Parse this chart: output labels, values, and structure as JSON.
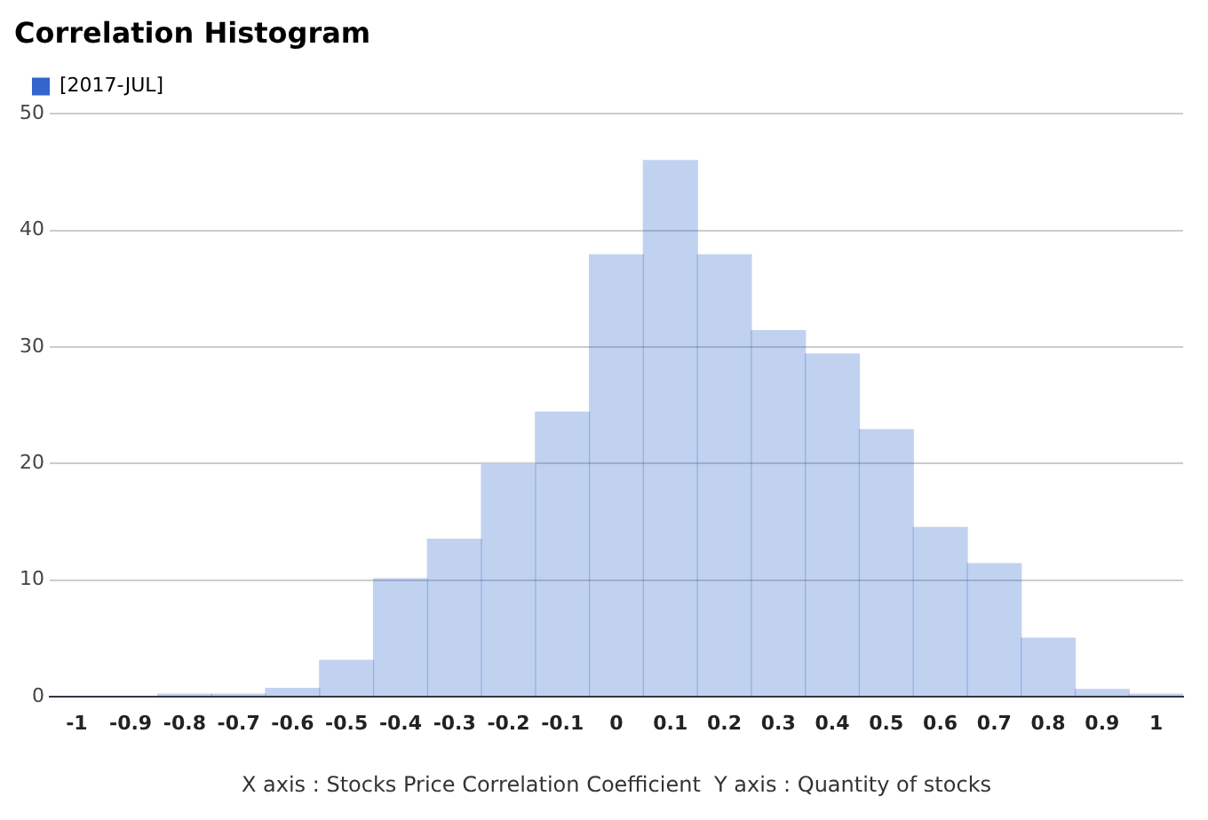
{
  "chart_data": {
    "type": "histogram",
    "title": "Correlation Histogram",
    "xlabel": "X axis : Stocks Price Correlation Coefficient  Y axis : Quantity of stocks",
    "bins": [
      -1.05,
      -0.95,
      -0.85,
      -0.75,
      -0.65,
      -0.55,
      -0.45,
      -0.35,
      -0.25,
      -0.15,
      -0.05,
      0.05,
      0.15,
      0.25,
      0.35,
      0.45,
      0.55,
      0.65,
      0.75,
      0.85,
      0.95,
      1.05
    ],
    "series": [
      {
        "name": "[2017-JUL]",
        "color": "#3366cc",
        "values": [
          0,
          0,
          0.2,
          0.2,
          0.7,
          3.1,
          10.1,
          13.5,
          19.9,
          24.4,
          37.9,
          46.0,
          37.9,
          31.4,
          29.4,
          22.9,
          14.5,
          11.4,
          5.0,
          0.6,
          0.2
        ]
      }
    ],
    "xlim": [
      -1.05,
      1.05
    ],
    "xticks": [
      -1,
      -0.9,
      -0.8,
      -0.7,
      -0.6,
      -0.5,
      -0.4,
      -0.3,
      -0.2,
      -0.1,
      0,
      0.1,
      0.2,
      0.3,
      0.4,
      0.5,
      0.6,
      0.7,
      0.8,
      0.9,
      1
    ],
    "ylim": [
      0,
      50
    ],
    "yticks": [
      0,
      10,
      20,
      30,
      40,
      50
    ],
    "grid": "y",
    "legend": "top left"
  }
}
